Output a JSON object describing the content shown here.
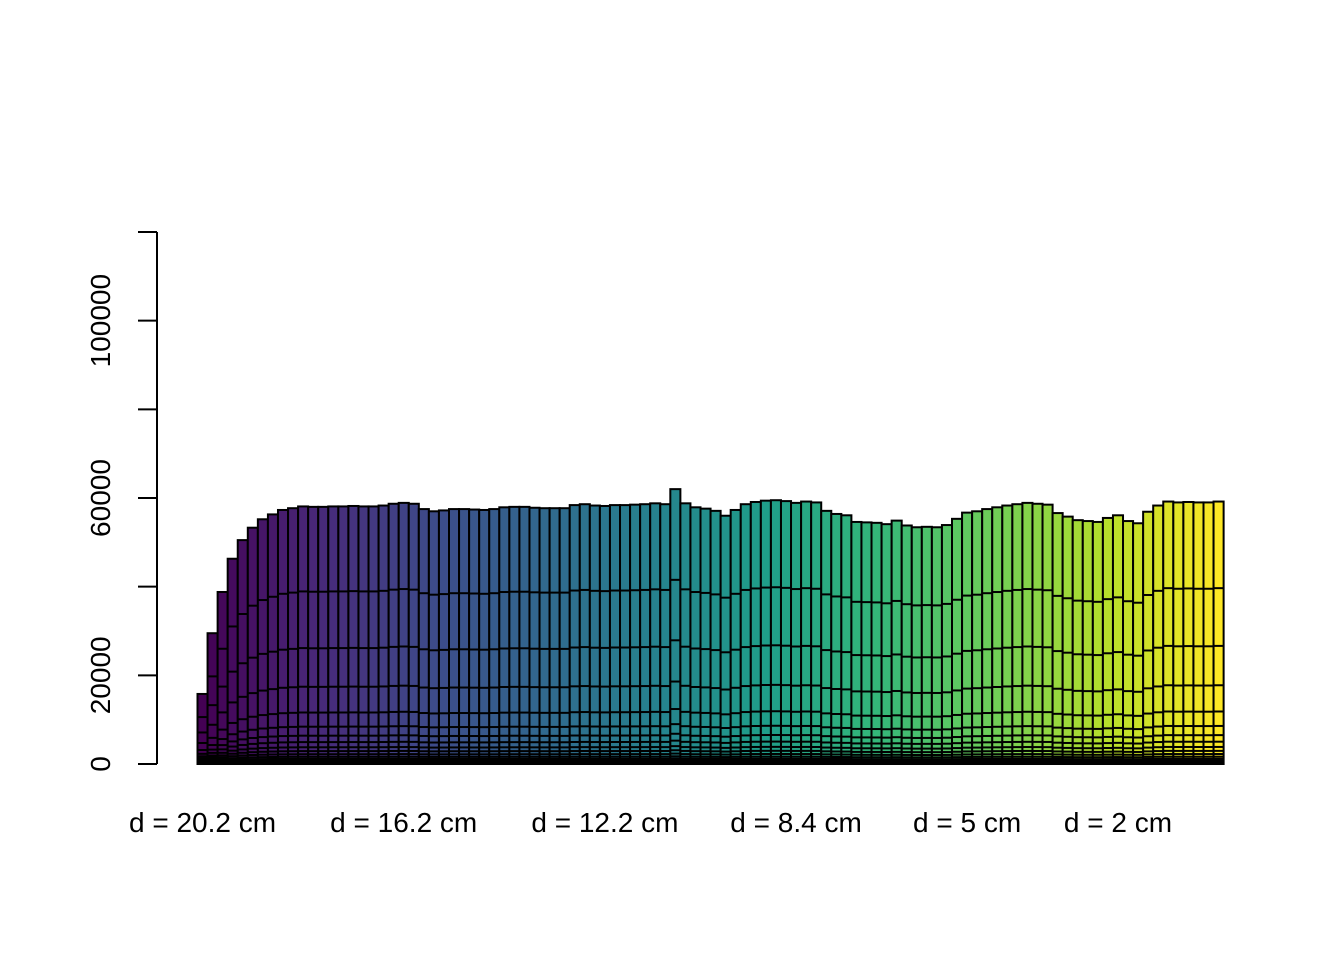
{
  "chart_data": {
    "type": "bar",
    "stacked": true,
    "ylim": [
      0,
      120000
    ],
    "yticks": [
      0,
      20000,
      40000,
      60000,
      80000,
      100000,
      120000
    ],
    "ytick_labels": [
      "0",
      "20000",
      "",
      "60000",
      "",
      "100000",
      ""
    ],
    "xtick_labels": [
      "d = 20.2 cm",
      "d = 16.2 cm",
      "d = 12.2 cm",
      "d = 8.4 cm",
      "d = 5 cm",
      "d = 2 cm"
    ],
    "xtick_bar_index": [
      0,
      20,
      40,
      59,
      76,
      91
    ],
    "colormap": [
      "#440154",
      "#482878",
      "#3e4989",
      "#31688e",
      "#26828e",
      "#1f9e89",
      "#35b779",
      "#6ece58",
      "#b5de2b",
      "#fde725"
    ],
    "band_boundary_fractions": [
      0.67,
      0.45,
      0.3,
      0.2,
      0.145,
      0.11,
      0.085,
      0.065,
      0.05,
      0.038,
      0.028,
      0.02,
      0.014,
      0.009,
      0.005,
      0.002
    ],
    "totals": [
      15800,
      29500,
      38800,
      46300,
      50500,
      53300,
      55200,
      56300,
      57300,
      57700,
      58100,
      58000,
      58000,
      58100,
      58100,
      58200,
      58100,
      58100,
      58300,
      58700,
      58900,
      58700,
      57500,
      57000,
      57200,
      57500,
      57500,
      57400,
      57300,
      57500,
      57900,
      58000,
      58000,
      57800,
      57700,
      57700,
      57700,
      58400,
      58600,
      58300,
      58200,
      58400,
      58400,
      58500,
      58600,
      58800,
      58600,
      62000,
      58800,
      57900,
      57600,
      57100,
      56000,
      57300,
      58600,
      59100,
      59400,
      59500,
      59300,
      58900,
      59200,
      59000,
      57100,
      56400,
      56100,
      54600,
      54500,
      54400,
      54100,
      54900,
      53800,
      53400,
      53500,
      53400,
      53900,
      55300,
      56700,
      57000,
      57500,
      57900,
      58300,
      58600,
      58900,
      58700,
      58500,
      56600,
      55800,
      55000,
      54800,
      54600,
      55500,
      56100,
      54800,
      54300,
      56900,
      58300,
      59200,
      59000,
      59100,
      59000,
      59000,
      59200
    ]
  }
}
